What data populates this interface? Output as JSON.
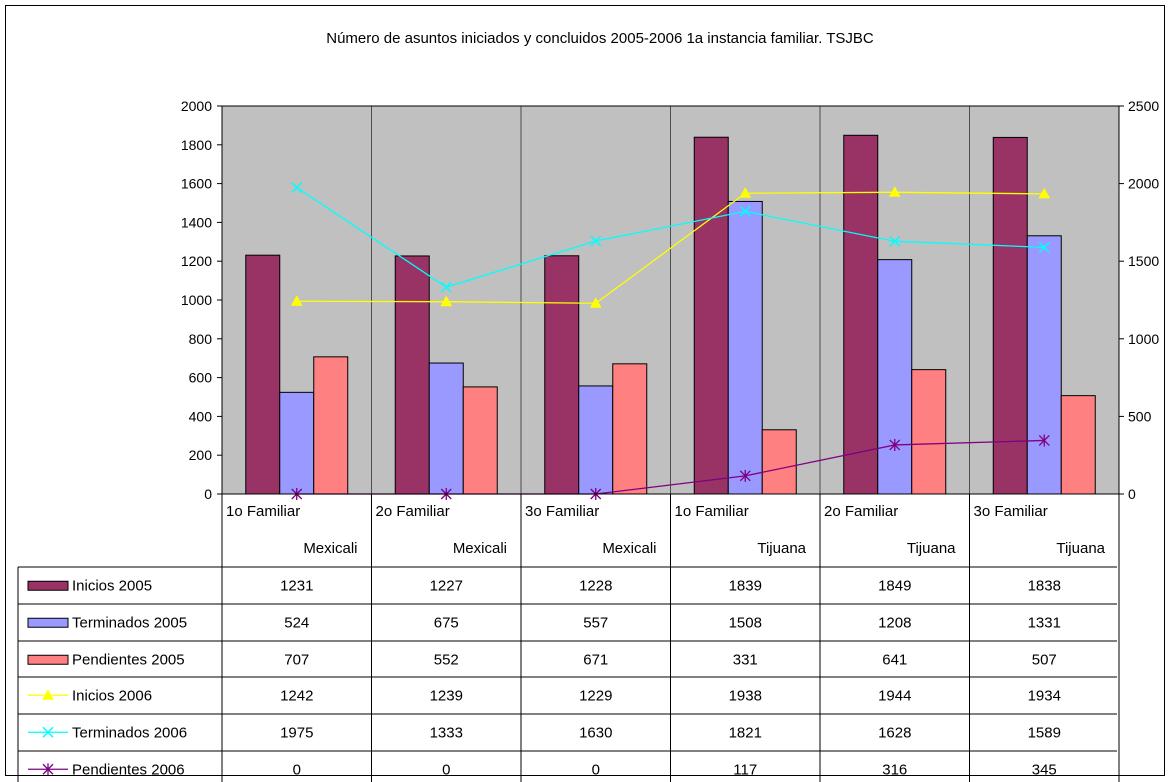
{
  "chart_data": {
    "type": "bar",
    "title": "Número de asuntos iniciados y concluidos 2005-2006 1a instancia familiar. TSJBC",
    "categories": [
      [
        "1o Familiar",
        "Mexicali"
      ],
      [
        "2o Familiar",
        "Mexicali"
      ],
      [
        "3o Familiar",
        "Mexicali"
      ],
      [
        "1o Familiar",
        "Tijuana"
      ],
      [
        "2o Familiar",
        "Tijuana"
      ],
      [
        "3o Familiar",
        "Tijuana"
      ]
    ],
    "primary_axis": {
      "ylim": [
        0,
        2000
      ],
      "ticks": [
        "0",
        "200",
        "400",
        "600",
        "800",
        "1000",
        "1200",
        "1400",
        "1600",
        "1800",
        "2000"
      ]
    },
    "secondary_axis": {
      "ylim": [
        0,
        2500
      ],
      "ticks": [
        "0",
        "500",
        "1000",
        "1500",
        "2000",
        "2500"
      ]
    },
    "series": [
      {
        "name": "Inicios 2005",
        "kind": "bar",
        "axis": "primary",
        "color": "#993366",
        "values": [
          1231,
          1227,
          1228,
          1839,
          1849,
          1838
        ]
      },
      {
        "name": "Terminados 2005",
        "kind": "bar",
        "axis": "primary",
        "color": "#9999FF",
        "values": [
          524,
          675,
          557,
          1508,
          1208,
          1331
        ]
      },
      {
        "name": "Pendientes 2005",
        "kind": "bar",
        "axis": "primary",
        "color": "#FF8080",
        "values": [
          707,
          552,
          671,
          331,
          641,
          507
        ]
      },
      {
        "name": "Inicios 2006",
        "kind": "line",
        "axis": "secondary",
        "color": "#FFFF00",
        "marker": "triangle",
        "values": [
          1242,
          1239,
          1229,
          1938,
          1944,
          1934
        ]
      },
      {
        "name": "Terminados 2006",
        "kind": "line",
        "axis": "secondary",
        "color": "#00FFFF",
        "marker": "x",
        "values": [
          1975,
          1333,
          1630,
          1821,
          1628,
          1589
        ]
      },
      {
        "name": "Pendientes 2006",
        "kind": "line",
        "axis": "secondary",
        "color": "#800080",
        "marker": "star",
        "values": [
          0,
          0,
          0,
          117,
          316,
          345
        ]
      }
    ],
    "plot_background": "#C0C0C0",
    "legend": "data-table-below"
  }
}
